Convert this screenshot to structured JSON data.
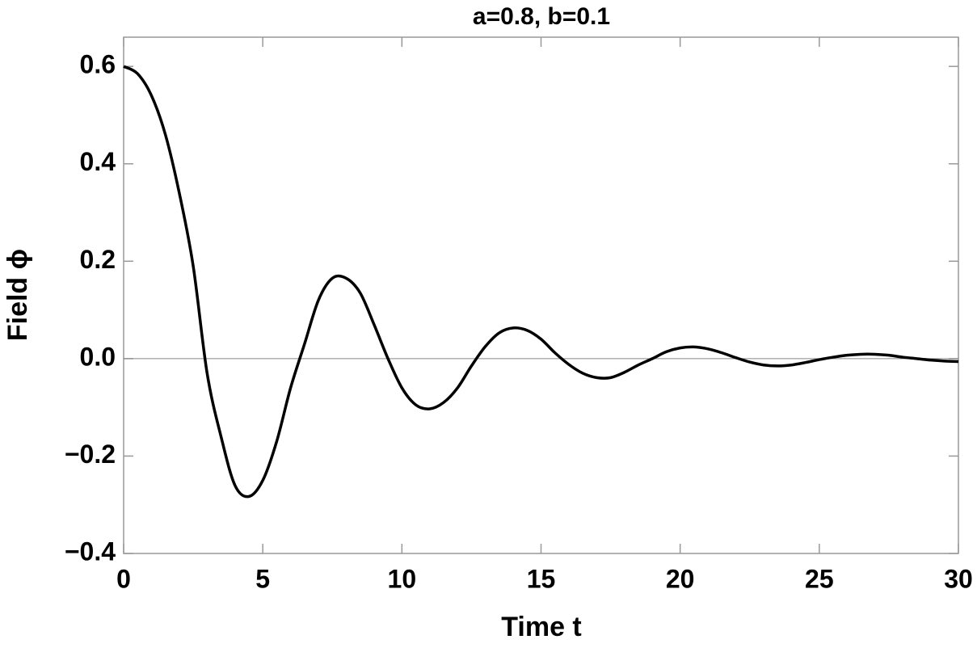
{
  "chart_data": {
    "type": "line",
    "title": "a=0.8, b=0.1",
    "x_label": "Time t",
    "y_label": "Field  ϕ",
    "x": [
      0,
      0.5,
      1,
      1.5,
      2,
      2.5,
      3,
      3.5,
      4,
      4.5,
      5,
      5.5,
      6,
      6.5,
      7,
      7.5,
      8,
      8.5,
      9,
      9.5,
      10,
      10.5,
      11,
      11.5,
      12,
      12.5,
      13,
      13.5,
      14,
      14.5,
      15,
      15.5,
      16,
      16.5,
      17,
      17.5,
      18,
      18.5,
      19,
      19.5,
      20,
      20.5,
      21,
      21.5,
      22,
      22.5,
      23,
      23.5,
      24,
      24.5,
      25,
      25.5,
      26,
      26.5,
      27,
      27.5,
      28,
      28.5,
      29,
      29.5,
      30
    ],
    "series": [
      {
        "name": "ϕ",
        "color": "#000000",
        "values": [
          0.6,
          0.585,
          0.54,
          0.46,
          0.34,
          0.19,
          -0.03,
          -0.16,
          -0.26,
          -0.283,
          -0.25,
          -0.17,
          -0.06,
          0.03,
          0.12,
          0.165,
          0.165,
          0.135,
          0.07,
          0.0,
          -0.06,
          -0.095,
          -0.103,
          -0.09,
          -0.06,
          -0.015,
          0.025,
          0.053,
          0.063,
          0.058,
          0.04,
          0.012,
          -0.012,
          -0.03,
          -0.039,
          -0.039,
          -0.028,
          -0.013,
          0.0,
          0.014,
          0.022,
          0.024,
          0.02,
          0.012,
          0.002,
          -0.007,
          -0.013,
          -0.015,
          -0.013,
          -0.008,
          -0.002,
          0.003,
          0.007,
          0.009,
          0.009,
          0.007,
          0.003,
          0.0,
          -0.003,
          -0.005,
          -0.006
        ]
      }
    ],
    "xlim": [
      0,
      30
    ],
    "ylim": [
      -0.4,
      0.66
    ],
    "xticks": [
      0,
      5,
      10,
      15,
      20,
      25,
      30
    ],
    "yticks": [
      {
        "value": -0.4,
        "label": "−0.4"
      },
      {
        "value": -0.2,
        "label": "−0.2"
      },
      {
        "value": 0,
        "label": "0.0"
      },
      0.2,
      0.4,
      0.6
    ],
    "grid": false
  }
}
